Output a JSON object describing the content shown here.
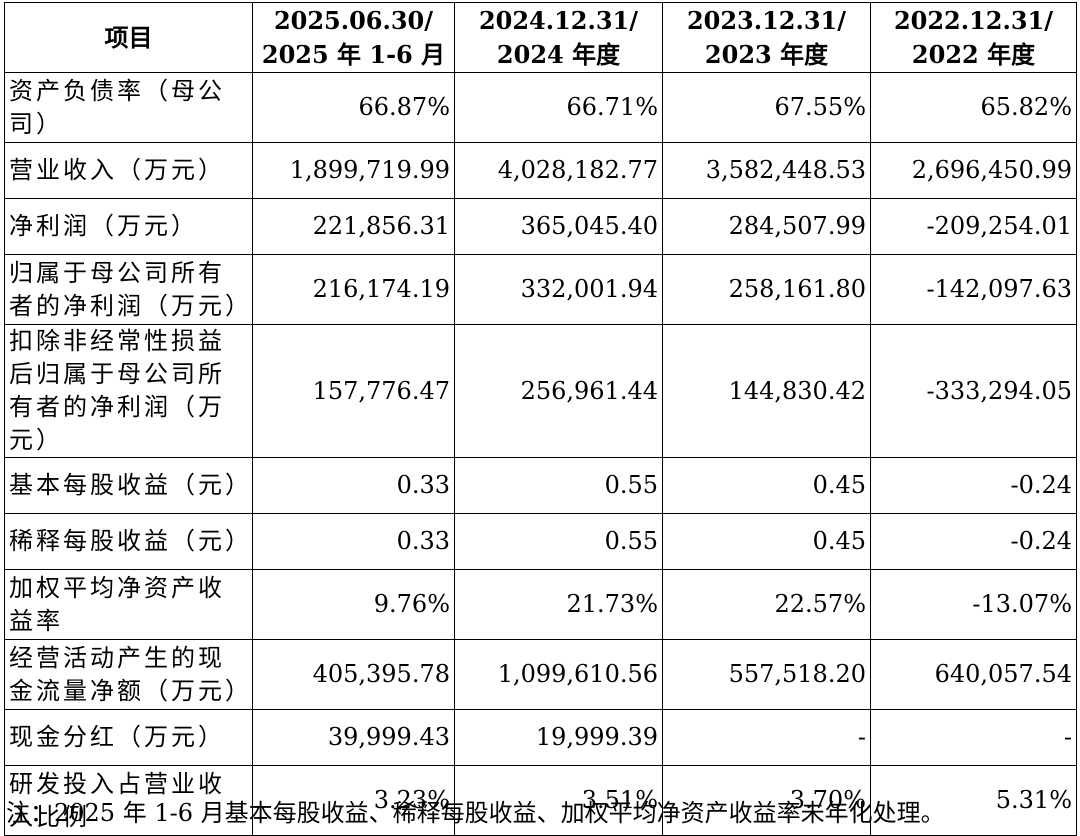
{
  "table": {
    "headers": [
      {
        "line1": "项目",
        "line2": ""
      },
      {
        "line1": "2025.06.30/",
        "line2": "2025 年 1-6 月"
      },
      {
        "line1": "2024.12.31/",
        "line2": "2024 年度"
      },
      {
        "line1": "2023.12.31/",
        "line2": "2023 年度"
      },
      {
        "line1": "2022.12.31/",
        "line2": "2022 年度"
      }
    ],
    "rows": [
      {
        "label": "资产负债率（母公司）",
        "values": [
          "66.87%",
          "66.71%",
          "67.55%",
          "65.82%"
        ]
      },
      {
        "label": "营业收入（万元）",
        "values": [
          "1,899,719.99",
          "4,028,182.77",
          "3,582,448.53",
          "2,696,450.99"
        ]
      },
      {
        "label": "净利润（万元）",
        "values": [
          "221,856.31",
          "365,045.40",
          "284,507.99",
          "-209,254.01"
        ]
      },
      {
        "label": "归属于母公司所有者的净利润（万元）",
        "values": [
          "216,174.19",
          "332,001.94",
          "258,161.80",
          "-142,097.63"
        ]
      },
      {
        "label": "扣除非经常性损益后归属于母公司所有者的净利润（万元）",
        "values": [
          "157,776.47",
          "256,961.44",
          "144,830.42",
          "-333,294.05"
        ]
      },
      {
        "label": "基本每股收益（元）",
        "values": [
          "0.33",
          "0.55",
          "0.45",
          "-0.24"
        ]
      },
      {
        "label": "稀释每股收益（元）",
        "values": [
          "0.33",
          "0.55",
          "0.45",
          "-0.24"
        ]
      },
      {
        "label": "加权平均净资产收益率",
        "values": [
          "9.76%",
          "21.73%",
          "22.57%",
          "-13.07%"
        ]
      },
      {
        "label": "经营活动产生的现金流量净额（万元）",
        "values": [
          "405,395.78",
          "1,099,610.56",
          "557,518.20",
          "640,057.54"
        ]
      },
      {
        "label": "现金分红（万元）",
        "values": [
          "39,999.43",
          "19,999.39",
          "-",
          "-"
        ]
      },
      {
        "label": "研发投入占营业收入比例",
        "values": [
          "3.23%",
          "3.51%",
          "3.70%",
          "5.31%"
        ]
      }
    ]
  },
  "note": "注：2025 年 1-6 月基本每股收益、稀释每股收益、加权平均净资产收益率未年化处理。"
}
